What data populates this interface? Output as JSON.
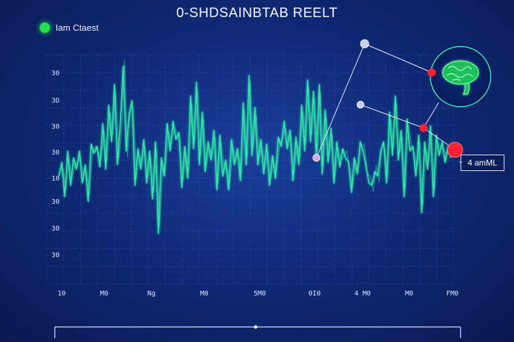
{
  "chart_data": {
    "type": "line",
    "title": "0-SHDSAINBTAB REELT",
    "legend": {
      "label": "Iam Ctaest",
      "color": "#27e04f",
      "placement": "top-left"
    },
    "xlabel": "",
    "ylabel": "",
    "grid": true,
    "x_tick_labels": [
      "10",
      "M0",
      "Ng",
      "M0",
      "5M0",
      "0I0",
      "4 M0",
      "M0",
      "FM0"
    ],
    "y_tick_labels": [
      "30",
      "3D",
      "30",
      "30",
      "10",
      "30",
      "30",
      "30"
    ],
    "ylim": [
      0,
      1
    ],
    "series": [
      {
        "name": "Iam Ctaest",
        "color": "#2fe7a8",
        "values": [
          0.47,
          0.53,
          0.38,
          0.58,
          0.43,
          0.55,
          0.5,
          0.58,
          0.44,
          0.52,
          0.36,
          0.61,
          0.57,
          0.6,
          0.51,
          0.7,
          0.5,
          0.78,
          0.62,
          0.87,
          0.52,
          0.7,
          0.95,
          0.58,
          0.74,
          0.8,
          0.43,
          0.59,
          0.5,
          0.63,
          0.44,
          0.58,
          0.37,
          0.62,
          0.22,
          0.55,
          0.47,
          0.7,
          0.58,
          0.71,
          0.63,
          0.66,
          0.42,
          0.6,
          0.46,
          0.82,
          0.59,
          0.88,
          0.52,
          0.75,
          0.49,
          0.62,
          0.54,
          0.67,
          0.41,
          0.65,
          0.47,
          0.54,
          0.41,
          0.63,
          0.52,
          0.59,
          0.45,
          0.79,
          0.52,
          0.91,
          0.56,
          0.77,
          0.52,
          0.63,
          0.48,
          0.61,
          0.43,
          0.56,
          0.46,
          0.64,
          0.6,
          0.71,
          0.59,
          0.67,
          0.45,
          0.64,
          0.52,
          0.78,
          0.58,
          0.89,
          0.62,
          0.84,
          0.55,
          0.87,
          0.48,
          0.76,
          0.53,
          0.68,
          0.44,
          0.62,
          0.51,
          0.59,
          0.55,
          0.53,
          0.4,
          0.55,
          0.48,
          0.62,
          0.58,
          0.51,
          0.44,
          0.43,
          0.49,
          0.47,
          0.58,
          0.62,
          0.44,
          0.75,
          0.56,
          0.82,
          0.54,
          0.67,
          0.38,
          0.72,
          0.58,
          0.6,
          0.47,
          0.65,
          0.31,
          0.62,
          0.5,
          0.69,
          0.38,
          0.65,
          0.56,
          0.62,
          0.53,
          0.6,
          0.55
        ]
      }
    ],
    "annotations": {
      "readout_label": "4 amML",
      "points": [
        {
          "name": "connector-dot-top",
          "color": "#c5cdf5",
          "series_index": null
        },
        {
          "name": "connector-dot-peak",
          "color": "#d6a4f0",
          "series_index": 88
        },
        {
          "name": "connector-dot-mid",
          "color": "#c5cdf5",
          "series_index": null
        },
        {
          "name": "marker-red-small",
          "color": "#ff2233",
          "series_index": null
        },
        {
          "name": "marker-red-mid",
          "color": "#ff2233",
          "series_index": null
        },
        {
          "name": "marker-red-large",
          "color": "#ff2233",
          "series_index": null
        }
      ],
      "icon": "brain-icon"
    }
  }
}
